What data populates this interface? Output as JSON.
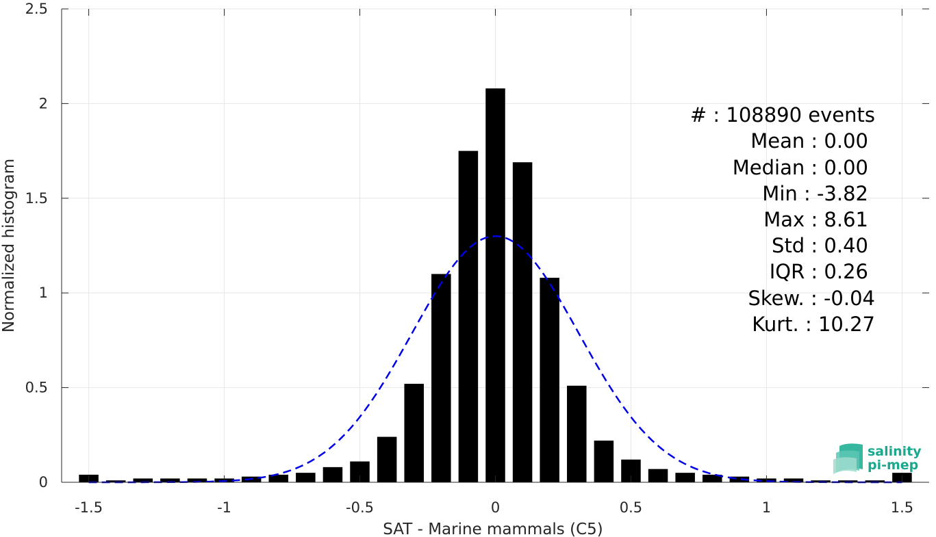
{
  "chart_data": {
    "type": "bar",
    "xlabel": "SAT - Marine mammals (C5)",
    "ylabel": "Normalized histogram",
    "xlim": [
      -1.6,
      1.6
    ],
    "ylim": [
      0,
      2.5
    ],
    "xticks": [
      -1.5,
      -1,
      -0.5,
      0,
      0.5,
      1,
      1.5
    ],
    "xtick_labels": [
      "-1.5",
      "-1",
      "-0.5",
      "0",
      "0.5",
      "1",
      "1.5"
    ],
    "yticks": [
      0,
      0.5,
      1,
      1.5,
      2,
      2.5
    ],
    "ytick_labels": [
      "0",
      "0.5",
      "1",
      "1.5",
      "2",
      "2.5"
    ],
    "grid": true,
    "bar_color": "#000000",
    "bins": [
      -1.5,
      -1.4,
      -1.3,
      -1.2,
      -1.1,
      -1.0,
      -0.9,
      -0.8,
      -0.7,
      -0.6,
      -0.5,
      -0.4,
      -0.3,
      -0.2,
      -0.1,
      0.0,
      0.1,
      0.2,
      0.3,
      0.4,
      0.5,
      0.6,
      0.7,
      0.8,
      0.9,
      1.0,
      1.1,
      1.2,
      1.3,
      1.4,
      1.5
    ],
    "values": [
      0.04,
      0.01,
      0.02,
      0.02,
      0.02,
      0.02,
      0.03,
      0.04,
      0.05,
      0.08,
      0.11,
      0.24,
      0.52,
      1.1,
      1.75,
      2.08,
      1.69,
      1.08,
      0.51,
      0.22,
      0.12,
      0.07,
      0.05,
      0.04,
      0.03,
      0.02,
      0.02,
      0.01,
      0.01,
      0.01,
      0.05
    ],
    "fit": {
      "style": "dashed",
      "color": "#0000e6",
      "mean": 0.0,
      "std": 0.307,
      "peak": 1.3
    }
  },
  "stats": {
    "count": "#  : 108890 events",
    "mean": "Mean : 0.00",
    "median": "Median : 0.00",
    "min": "Min : -3.82",
    "max": "Max : 8.61",
    "std": "Std : 0.40",
    "iqr": "IQR : 0.26",
    "skew": "Skew. : -0.04",
    "kurt": "Kurt. : 10.27"
  },
  "logo": {
    "line1": "salinity",
    "line2": "pi-mep",
    "color": "#1aa88e"
  }
}
